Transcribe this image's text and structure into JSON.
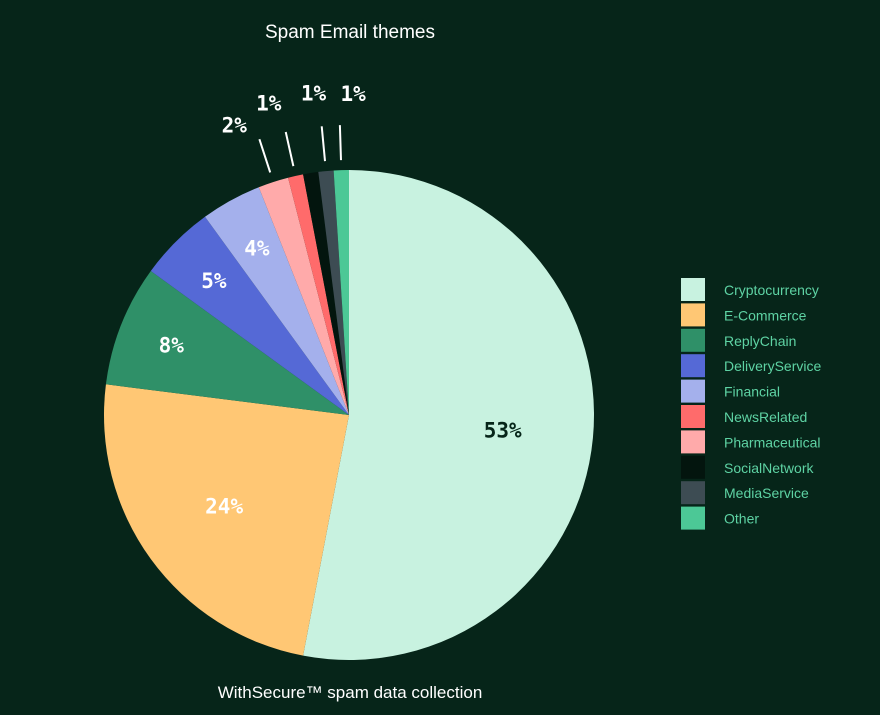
{
  "chart_data": {
    "type": "pie",
    "title": "Spam Email themes",
    "footer": "WithSecure™ spam data collection",
    "slices": [
      {
        "name": "Cryptocurrency",
        "value": 53,
        "label": "53%",
        "color": "#c8f2e0"
      },
      {
        "name": "E-Commerce",
        "value": 24,
        "label": "24%",
        "color": "#ffc774"
      },
      {
        "name": "ReplyChain",
        "value": 8,
        "label": "8%",
        "color": "#2f9068"
      },
      {
        "name": "DeliveryService",
        "value": 5,
        "label": "5%",
        "color": "#5569d6"
      },
      {
        "name": "Financial",
        "value": 4,
        "label": "4%",
        "color": "#a4b0ec"
      },
      {
        "name": "Pharmaceutical",
        "value": 2,
        "label": "2%",
        "color": "#ffaaaa"
      },
      {
        "name": "NewsRelated",
        "value": 1,
        "label": "1%",
        "color": "#ff6b6b"
      },
      {
        "name": "SocialNetwork",
        "value": 1,
        "label": "",
        "color": "#03150e"
      },
      {
        "name": "MediaService",
        "value": 1,
        "label": "1%",
        "color": "#3d4c53"
      },
      {
        "name": "Other",
        "value": 1,
        "label": "1%",
        "color": "#4cc896"
      }
    ],
    "legend": {
      "position": "right",
      "entries": [
        {
          "name": "Cryptocurrency",
          "color": "#c8f2e0"
        },
        {
          "name": "E-Commerce",
          "color": "#ffc774"
        },
        {
          "name": "ReplyChain",
          "color": "#2f9068"
        },
        {
          "name": "DeliveryService",
          "color": "#5569d6"
        },
        {
          "name": "Financial",
          "color": "#a4b0ec"
        },
        {
          "name": "NewsRelated",
          "color": "#ff6b6b"
        },
        {
          "name": "Pharmaceutical",
          "color": "#ffaaaa"
        },
        {
          "name": "SocialNetwork",
          "color": "#03150e"
        },
        {
          "name": "MediaService",
          "color": "#3d4c53"
        },
        {
          "name": "Other",
          "color": "#4cc896"
        }
      ]
    },
    "background_color": "#062519",
    "legend_text_color": "#5ed3a4",
    "label_color_dark": "#062519",
    "label_color_light": "#ffffff"
  }
}
